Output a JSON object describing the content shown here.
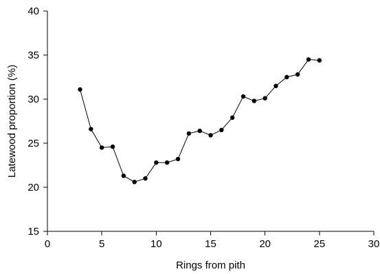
{
  "chart_data": {
    "type": "scatter",
    "xlabel": "Rings from pith",
    "ylabel": "Latewood proportion (%)",
    "xlim": [
      0,
      30
    ],
    "ylim": [
      15,
      40
    ],
    "xticks": [
      0,
      5,
      10,
      15,
      20,
      25,
      30
    ],
    "yticks": [
      15,
      20,
      25,
      30,
      35,
      40
    ],
    "grid": false,
    "series": [
      {
        "x": [
          3,
          4,
          5,
          6,
          7,
          8,
          9,
          10,
          11,
          12,
          13,
          14,
          15,
          16,
          17,
          18,
          19,
          20,
          21,
          22,
          23,
          24,
          25
        ],
        "y": [
          31.1,
          26.6,
          24.5,
          24.6,
          21.3,
          20.6,
          21.0,
          22.8,
          22.8,
          23.2,
          26.1,
          26.4,
          25.9,
          26.5,
          27.9,
          30.3,
          29.8,
          30.1,
          31.5,
          32.5,
          32.8,
          34.5,
          34.4
        ],
        "color": "#000000",
        "marker": "circle",
        "line": true
      }
    ]
  }
}
